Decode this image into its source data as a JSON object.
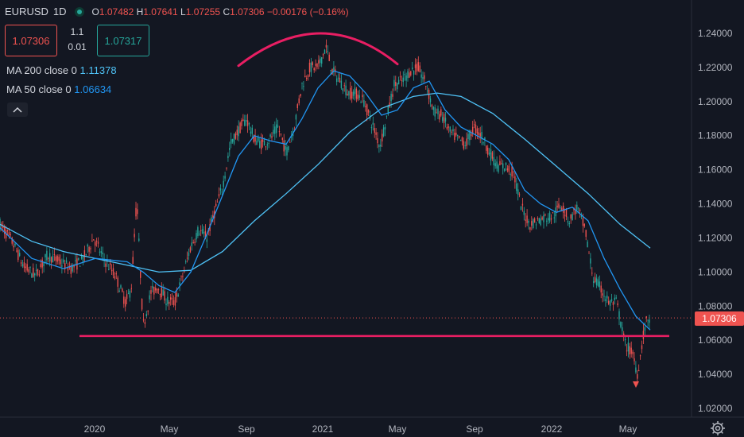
{
  "header": {
    "symbol": "EURUSD",
    "interval": "1D",
    "open_label": "O",
    "open": "1.07482",
    "high_label": "H",
    "high": "1.07641",
    "low_label": "L",
    "low": "1.07255",
    "close_label": "C",
    "close": "1.07306",
    "change": "−0.00176 (−0.16%)"
  },
  "trade": {
    "sell": "1.07306",
    "spread_top": "1.1",
    "spread_bottom": "0.01",
    "buy": "1.07317"
  },
  "indicators": [
    {
      "label": "MA 200 close 0",
      "value": "1.11378"
    },
    {
      "label": "MA 50 close 0",
      "value": "1.06634"
    }
  ],
  "last_price": "1.07306",
  "icons": {
    "status": "market-open-dot-icon",
    "collapse": "chevron-up-icon",
    "settings": "gear-icon"
  },
  "colors": {
    "background": "#131722",
    "up": "#26a69a",
    "down": "#ef5350",
    "ma200": "#4fc3f7",
    "ma50": "#2196f3",
    "annotation": "#e91e63",
    "last_price": "#ef5350"
  },
  "chart_data": {
    "type": "candlestick",
    "symbol": "EURUSD",
    "interval": "1D",
    "y_ticks": [
      "1.24000",
      "1.22000",
      "1.20000",
      "1.18000",
      "1.16000",
      "1.14000",
      "1.12000",
      "1.10000",
      "1.08000",
      "1.06000",
      "1.04000",
      "1.02000"
    ],
    "ylim": [
      1.0125,
      1.2445
    ],
    "x_ticks": [
      {
        "label": "2020",
        "t": 119
      },
      {
        "label": "May",
        "t": 213
      },
      {
        "label": "Sep",
        "t": 310
      },
      {
        "label": "2021",
        "t": 406
      },
      {
        "label": "May",
        "t": 500
      },
      {
        "label": "Sep",
        "t": 597
      },
      {
        "label": "2022",
        "t": 694
      },
      {
        "label": "May",
        "t": 790
      }
    ],
    "xlim": [
      0,
      870
    ],
    "price_path": [
      [
        0,
        1.128
      ],
      [
        15,
        1.118
      ],
      [
        30,
        1.103
      ],
      [
        45,
        1.098
      ],
      [
        60,
        1.11
      ],
      [
        75,
        1.106
      ],
      [
        90,
        1.102
      ],
      [
        105,
        1.108
      ],
      [
        118,
        1.12
      ],
      [
        130,
        1.108
      ],
      [
        145,
        1.098
      ],
      [
        158,
        1.082
      ],
      [
        165,
        1.09
      ],
      [
        172,
        1.143
      ],
      [
        180,
        1.068
      ],
      [
        190,
        1.088
      ],
      [
        200,
        1.091
      ],
      [
        210,
        1.083
      ],
      [
        220,
        1.082
      ],
      [
        230,
        1.098
      ],
      [
        240,
        1.115
      ],
      [
        250,
        1.125
      ],
      [
        260,
        1.12
      ],
      [
        270,
        1.135
      ],
      [
        280,
        1.15
      ],
      [
        290,
        1.175
      ],
      [
        300,
        1.183
      ],
      [
        310,
        1.19
      ],
      [
        320,
        1.178
      ],
      [
        330,
        1.175
      ],
      [
        340,
        1.178
      ],
      [
        350,
        1.185
      ],
      [
        360,
        1.17
      ],
      [
        370,
        1.185
      ],
      [
        380,
        1.21
      ],
      [
        390,
        1.22
      ],
      [
        400,
        1.22
      ],
      [
        410,
        1.232
      ],
      [
        418,
        1.218
      ],
      [
        428,
        1.212
      ],
      [
        438,
        1.205
      ],
      [
        448,
        1.205
      ],
      [
        458,
        1.2
      ],
      [
        468,
        1.187
      ],
      [
        478,
        1.174
      ],
      [
        486,
        1.19
      ],
      [
        496,
        1.21
      ],
      [
        506,
        1.212
      ],
      [
        516,
        1.218
      ],
      [
        526,
        1.22
      ],
      [
        536,
        1.21
      ],
      [
        546,
        1.194
      ],
      [
        556,
        1.192
      ],
      [
        566,
        1.182
      ],
      [
        576,
        1.178
      ],
      [
        586,
        1.175
      ],
      [
        596,
        1.185
      ],
      [
        606,
        1.18
      ],
      [
        616,
        1.17
      ],
      [
        626,
        1.162
      ],
      [
        636,
        1.162
      ],
      [
        646,
        1.158
      ],
      [
        656,
        1.138
      ],
      [
        666,
        1.128
      ],
      [
        676,
        1.13
      ],
      [
        686,
        1.132
      ],
      [
        696,
        1.133
      ],
      [
        706,
        1.14
      ],
      [
        716,
        1.13
      ],
      [
        726,
        1.138
      ],
      [
        736,
        1.125
      ],
      [
        746,
        1.097
      ],
      [
        756,
        1.09
      ],
      [
        766,
        1.082
      ],
      [
        776,
        1.082
      ],
      [
        786,
        1.058
      ],
      [
        796,
        1.052
      ],
      [
        802,
        1.04
      ],
      [
        806,
        1.052
      ],
      [
        810,
        1.065
      ],
      [
        814,
        1.072
      ],
      [
        818,
        1.073
      ]
    ],
    "series": [
      {
        "name": "MA 200 close 0",
        "values": [
          [
            0,
            1.128
          ],
          [
            40,
            1.118
          ],
          [
            80,
            1.112
          ],
          [
            120,
            1.108
          ],
          [
            160,
            1.104
          ],
          [
            200,
            1.1
          ],
          [
            240,
            1.101
          ],
          [
            280,
            1.112
          ],
          [
            320,
            1.13
          ],
          [
            360,
            1.146
          ],
          [
            400,
            1.163
          ],
          [
            440,
            1.182
          ],
          [
            480,
            1.196
          ],
          [
            520,
            1.203
          ],
          [
            550,
            1.205
          ],
          [
            580,
            1.203
          ],
          [
            620,
            1.193
          ],
          [
            660,
            1.178
          ],
          [
            700,
            1.162
          ],
          [
            740,
            1.146
          ],
          [
            780,
            1.128
          ],
          [
            818,
            1.114
          ]
        ]
      },
      {
        "name": "MA 50 close 0",
        "values": [
          [
            0,
            1.126
          ],
          [
            40,
            1.108
          ],
          [
            80,
            1.102
          ],
          [
            120,
            1.108
          ],
          [
            160,
            1.106
          ],
          [
            180,
            1.1
          ],
          [
            200,
            1.092
          ],
          [
            220,
            1.088
          ],
          [
            240,
            1.1
          ],
          [
            260,
            1.122
          ],
          [
            280,
            1.145
          ],
          [
            300,
            1.168
          ],
          [
            320,
            1.18
          ],
          [
            340,
            1.177
          ],
          [
            360,
            1.175
          ],
          [
            380,
            1.19
          ],
          [
            400,
            1.208
          ],
          [
            420,
            1.218
          ],
          [
            440,
            1.215
          ],
          [
            460,
            1.205
          ],
          [
            480,
            1.192
          ],
          [
            500,
            1.195
          ],
          [
            520,
            1.208
          ],
          [
            540,
            1.212
          ],
          [
            560,
            1.195
          ],
          [
            580,
            1.185
          ],
          [
            600,
            1.18
          ],
          [
            620,
            1.175
          ],
          [
            640,
            1.166
          ],
          [
            660,
            1.148
          ],
          [
            680,
            1.14
          ],
          [
            700,
            1.135
          ],
          [
            720,
            1.138
          ],
          [
            740,
            1.13
          ],
          [
            760,
            1.108
          ],
          [
            780,
            1.09
          ],
          [
            800,
            1.074
          ],
          [
            818,
            1.066
          ]
        ]
      }
    ],
    "annotations": [
      {
        "kind": "arc",
        "from": [
          300,
          1.221
        ],
        "peak": [
          404,
          1.24
        ],
        "to": [
          500,
          1.222
        ]
      },
      {
        "kind": "horizontal",
        "price": 1.0625,
        "from_t": 100,
        "to_t": 842
      },
      {
        "kind": "arrow-down",
        "t": 800,
        "price": 1.034
      }
    ],
    "last_price": 1.07306
  }
}
